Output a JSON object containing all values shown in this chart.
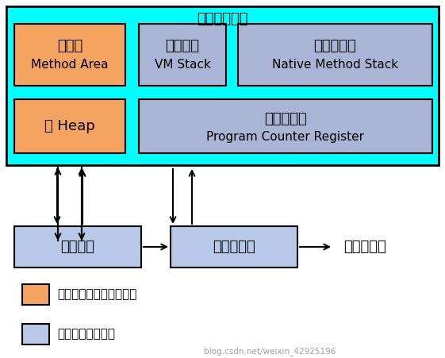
{
  "bg_color": "#ffffff",
  "cyan_bg": "#00ffff",
  "orange_fill": "#f4a460",
  "blue_fill": "#aab4d4",
  "light_blue_box": "#b8c8e8",
  "box_edge": "#000000",
  "runtime_label": "运行时数据区",
  "method_area_zh": "方法区",
  "method_area_en": "Method Area",
  "heap_zh": "堆 Heap",
  "vm_stack_zh": "虚拟机栈",
  "vm_stack_en": "VM Stack",
  "native_stack_zh": "本地方法栈",
  "native_stack_en": "Native Method Stack",
  "pc_zh": "程序计数器",
  "pc_en": "Program Counter Register",
  "exec_engine": "执行引擎",
  "native_lib_interface": "本地库接口",
  "native_lib": "本地方法库",
  "legend1": "由所有线程共享的数据区",
  "legend2": "线程隔离的数据区",
  "watermark": "blog.csdn.net/weixin_42925196"
}
